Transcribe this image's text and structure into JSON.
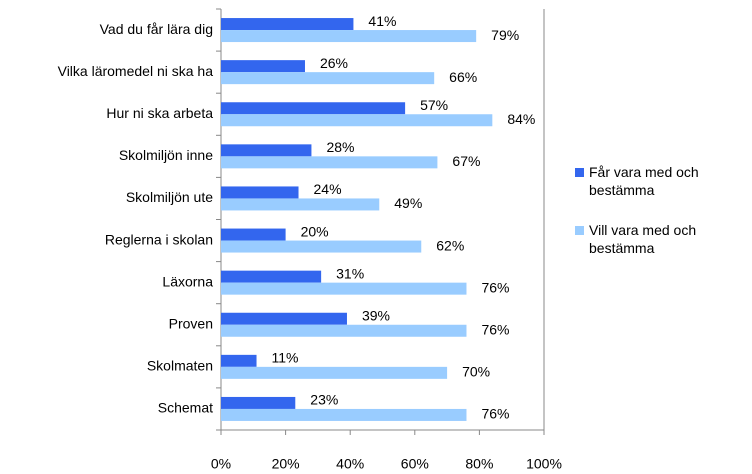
{
  "chart_data": {
    "type": "barh",
    "categories": [
      "Vad du får lära dig",
      "Vilka läromedel ni ska ha",
      "Hur ni ska arbeta",
      "Skolmiljön inne",
      "Skolmiljön ute",
      "Reglerna i skolan",
      "Läxorna",
      "Proven",
      "Skolmaten",
      "Schemat"
    ],
    "series": [
      {
        "name": "Får vara med och bestämma",
        "color": "#3366ee",
        "values": [
          41,
          26,
          57,
          28,
          24,
          20,
          31,
          39,
          11,
          23
        ],
        "value_labels": [
          "41%",
          "26%",
          "57%",
          "28%",
          "24%",
          "20%",
          "31%",
          "39%",
          "11%",
          "23%"
        ]
      },
      {
        "name": "Vill vara med och bestämma",
        "color": "#99ccff",
        "values": [
          79,
          66,
          84,
          67,
          49,
          62,
          76,
          76,
          70,
          76
        ],
        "value_labels": [
          "79%",
          "66%",
          "84%",
          "67%",
          "49%",
          "62%",
          "76%",
          "76%",
          "70%",
          "76%"
        ]
      }
    ],
    "xlim": [
      0,
      100
    ],
    "xticks": [
      {
        "value": 0,
        "label": "0%"
      },
      {
        "value": 20,
        "label": "20%"
      },
      {
        "value": 40,
        "label": "40%"
      },
      {
        "value": 60,
        "label": "60%"
      },
      {
        "value": 80,
        "label": "80%"
      },
      {
        "value": 100,
        "label": "100%"
      }
    ],
    "legend": "right"
  }
}
